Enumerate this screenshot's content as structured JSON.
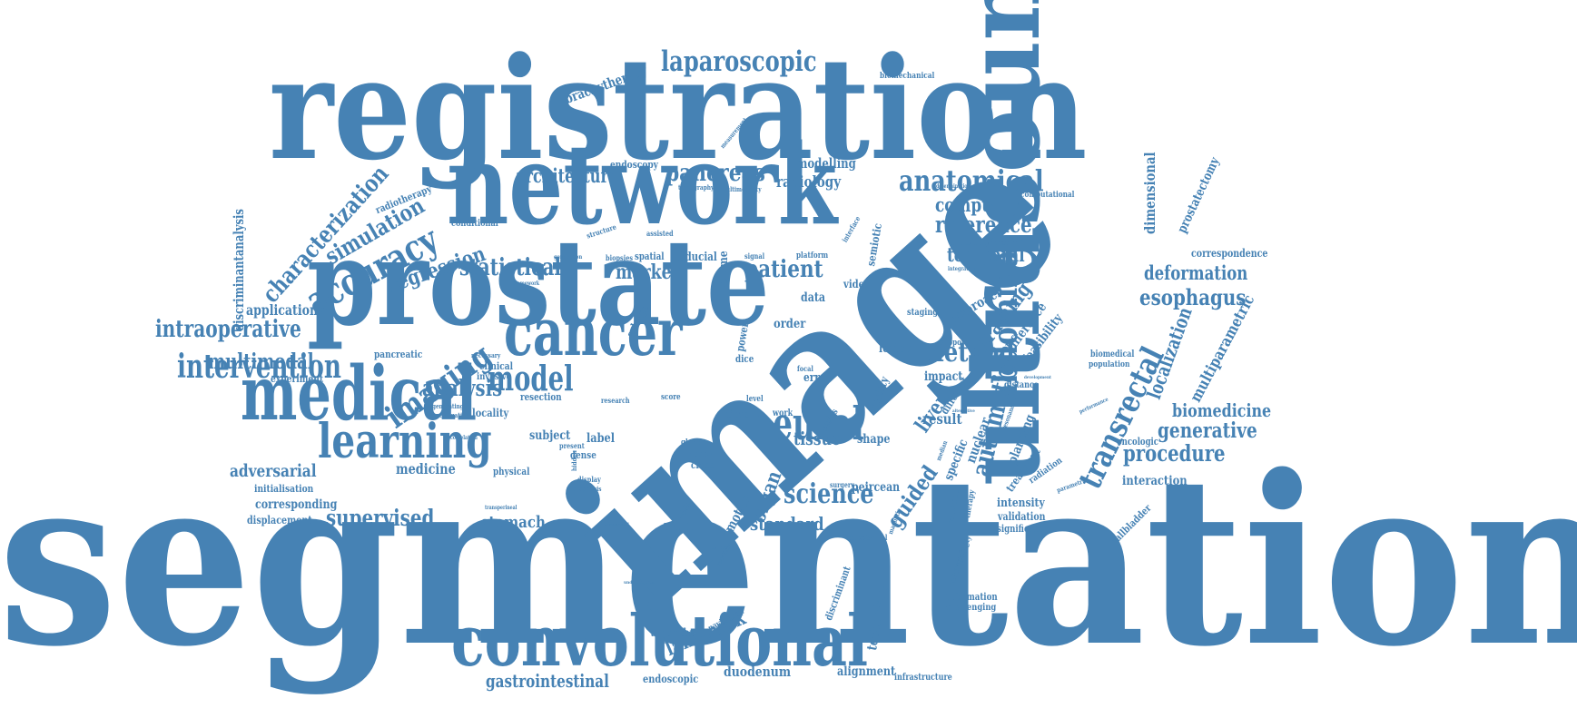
{
  "color": "#4682b4",
  "words": [
    "segmentation",
    "registration",
    "image",
    "prostate",
    "network",
    "ultrasound",
    "convolutional",
    "cancer",
    "medical",
    "learning",
    "neural",
    "model",
    "anatomical",
    "abdominal",
    "laparoscopic",
    "intervention",
    "accuracy",
    "method",
    "science",
    "transrectal",
    "procedure",
    "imaging",
    "patient",
    "statistical",
    "supervised",
    "reference",
    "generative",
    "biomedicine",
    "deformation",
    "esophagus",
    "automatic",
    "architecture",
    "simulation",
    "characterization",
    "pancreas",
    "intraoperative",
    "multimodal",
    "analysis",
    "regression",
    "computer",
    "temporal",
    "standard",
    "guided",
    "tissue",
    "liver",
    "organ",
    "marker",
    "gastrointestinal",
    "stomach",
    "adversarial",
    "landmark",
    "duodenum",
    "medicine",
    "application",
    "training",
    "localization",
    "multiparametric",
    "radiology",
    "modelling",
    "brachytherapy",
    "biomechanical",
    "dimensional",
    "prostatectomy",
    "correspondence",
    "discriminantanalysis",
    "radiotherapy",
    "fiducial",
    "spatial",
    "endoscopy",
    "conditional",
    "pancreatic",
    "experiment",
    "clinical",
    "invasive",
    "resection",
    "subject",
    "label",
    "physical",
    "initialisation",
    "corresponding",
    "displacement",
    "locality",
    "endoscopic",
    "alignment",
    "infrastructure",
    "technology",
    "algorithm",
    "motion",
    "dense",
    "cross",
    "kidney",
    "gland",
    "shape",
    "peircean",
    "nuclear",
    "specific",
    "intensity",
    "validation",
    "significant",
    "interaction",
    "oncologic",
    "biomedical",
    "population",
    "distance",
    "result",
    "impact",
    "planning",
    "treatment",
    "radiation",
    "information",
    "challenging",
    "computational",
    "video",
    "data",
    "order",
    "error",
    "lesion",
    "quality",
    "approach",
    "difference",
    "feasibility",
    "salvage",
    "volume",
    "power",
    "dice",
    "time",
    "level",
    "work",
    "series",
    "staging",
    "support",
    "metaphor",
    "distortion",
    "gallbladder",
    "discriminant",
    "navigation",
    "formula",
    "sample",
    "different",
    "platform",
    "signal",
    "biopsies",
    "structure",
    "assisted",
    "tomography",
    "multimodality",
    "measurement",
    "interface",
    "semiotic",
    "variability",
    "deformable",
    "evaluation",
    "therapy",
    "substantial",
    "surgery",
    "display",
    "diagnosis",
    "present",
    "score",
    "focal",
    "hidden",
    "necessary",
    "generating",
    "investigating",
    "correlation",
    "transperineal",
    "conclusion",
    "parametric",
    "integration",
    "determination",
    "performance",
    "framework",
    "generation",
    "research",
    "magnetic",
    "median",
    "resonance",
    "development",
    "alternative",
    "experienced",
    "specificity",
    "understanding"
  ]
}
